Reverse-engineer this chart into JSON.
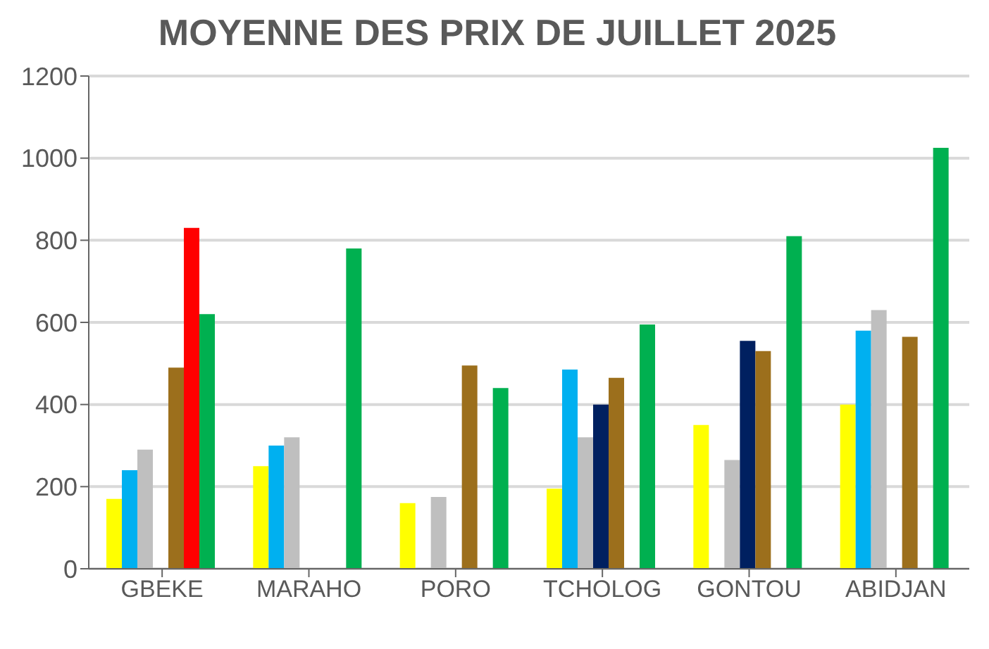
{
  "chart_data": {
    "type": "bar",
    "title": "MOYENNE DES PRIX DE JUILLET 2025",
    "categories": [
      "GBEKE",
      "MARAHO",
      "PORO",
      "TCHOLOG",
      "GONTOU",
      "ABIDJAN"
    ],
    "series": [
      {
        "color": "#ffff00",
        "values": [
          170,
          250,
          160,
          195,
          350,
          400
        ]
      },
      {
        "color": "#00b0f0",
        "values": [
          240,
          300,
          0,
          485,
          0,
          580
        ]
      },
      {
        "color": "#bfbfbf",
        "values": [
          290,
          320,
          175,
          320,
          265,
          630
        ]
      },
      {
        "color": "#002060",
        "values": [
          0,
          0,
          0,
          400,
          555,
          0
        ]
      },
      {
        "color": "#9c6f1c",
        "values": [
          490,
          0,
          495,
          465,
          530,
          565
        ]
      },
      {
        "color": "#ff0000",
        "values": [
          830,
          null,
          null,
          null,
          null,
          null
        ]
      },
      {
        "color": "#00b050",
        "values": [
          620,
          780,
          440,
          595,
          810,
          1025
        ]
      }
    ],
    "ylim": [
      0,
      1200
    ],
    "yticks": [
      0,
      200,
      400,
      600,
      800,
      1000,
      1200
    ],
    "grid": "y",
    "legend": false
  }
}
